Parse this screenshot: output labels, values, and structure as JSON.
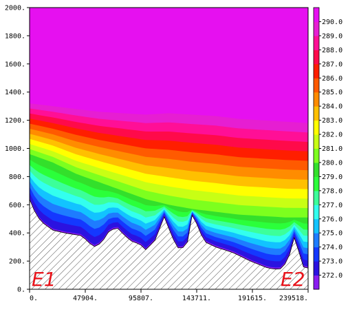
{
  "chart_data": {
    "type": "heatmap",
    "title": "",
    "xlabel": "",
    "ylabel": "",
    "xlim": [
      0,
      239518
    ],
    "ylim": [
      0,
      2000
    ],
    "x_ticks": [
      0,
      47904,
      95807,
      143711,
      191615,
      239518
    ],
    "x_tick_labels": [
      "0.",
      "47904.",
      "95807.",
      "143711.",
      "191615.",
      "239518."
    ],
    "y_ticks": [
      0,
      200,
      400,
      600,
      800,
      1000,
      1200,
      1400,
      1600,
      1800,
      2000
    ],
    "y_tick_labels": [
      "0.",
      "200.",
      "400.",
      "600.",
      "800.",
      "1000.",
      "1200.",
      "1400.",
      "1600.",
      "1800.",
      "2000."
    ],
    "colorbar": {
      "levels": [
        272.0,
        273.0,
        274.0,
        275.0,
        276.0,
        277.0,
        278.0,
        279.0,
        280.0,
        281.0,
        282.0,
        283.0,
        284.0,
        285.0,
        286.0,
        287.0,
        288.0,
        289.0,
        290.0
      ],
      "labels": [
        "272.0",
        "273.0",
        "274.0",
        "275.0",
        "276.0",
        "277.0",
        "278.0",
        "279.0",
        "280.0",
        "281.0",
        "282.0",
        "283.0",
        "284.0",
        "285.0",
        "286.0",
        "287.0",
        "288.0",
        "289.0",
        "290.0"
      ],
      "colors": [
        "#8a1cf0",
        "#2b12e0",
        "#1438ff",
        "#1e7cff",
        "#12c3ff",
        "#33ffee",
        "#3cff9a",
        "#2bff3a",
        "#33e02b",
        "#7dff1e",
        "#c8ff14",
        "#ffff00",
        "#ffc000",
        "#ff8c00",
        "#ff5a00",
        "#ff1e00",
        "#ff0a4a",
        "#ff0f96",
        "#e61ed2",
        "#e610f0"
      ]
    },
    "terrain": {
      "x": [
        0,
        5000,
        10000,
        20000,
        30000,
        45000,
        55000,
        62000,
        68000,
        75000,
        82000,
        88000,
        95000,
        100000,
        108000,
        116000,
        122000,
        128000,
        135000,
        140000,
        146000,
        150000,
        160000,
        175000,
        190000,
        205000,
        215000,
        222000,
        228000,
        235000,
        239518
      ],
      "elev": [
        640,
        540,
        480,
        420,
        400,
        380,
        300,
        330,
        410,
        440,
        380,
        340,
        320,
        280,
        350,
        520,
        380,
        290,
        300,
        540,
        420,
        340,
        300,
        260,
        200,
        150,
        140,
        200,
        380,
        160,
        150
      ]
    },
    "top_isotherm": {
      "x": [
        0,
        20000,
        40000,
        60000,
        80000,
        100000,
        120000,
        140000,
        160000,
        180000,
        200000,
        220000,
        239518
      ],
      "height": [
        1320,
        1300,
        1280,
        1260,
        1250,
        1240,
        1250,
        1240,
        1230,
        1210,
        1200,
        1190,
        1180
      ]
    },
    "base_isotherm": {
      "x": [
        0,
        20000,
        40000,
        60000,
        80000,
        100000,
        120000,
        140000,
        160000,
        180000,
        200000,
        220000,
        239518
      ],
      "height": [
        960,
        900,
        820,
        760,
        700,
        640,
        600,
        570,
        550,
        530,
        520,
        510,
        510
      ]
    },
    "end_labels": [
      "E1",
      "E2"
    ]
  }
}
